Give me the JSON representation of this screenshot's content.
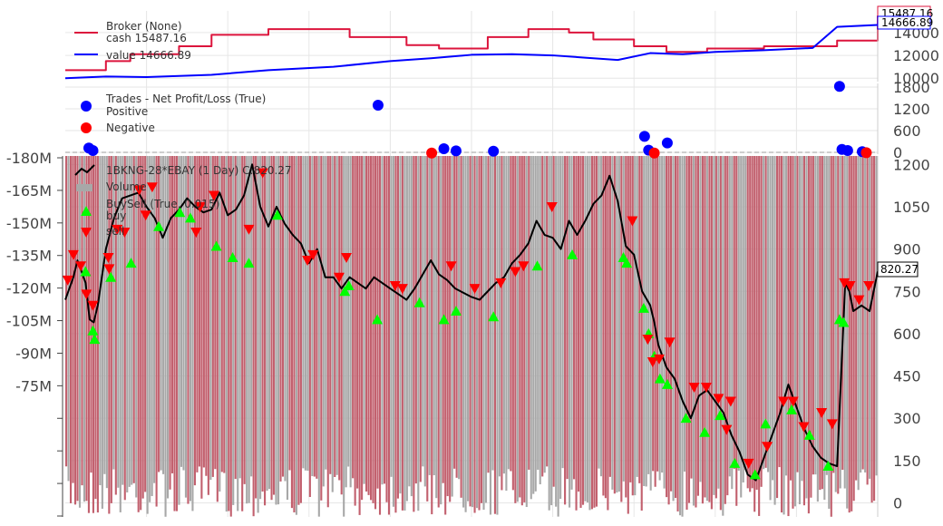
{
  "colors": {
    "cash": "#dc143c",
    "value": "#0000ff",
    "positive": "#0000ff",
    "negative": "#ff0000",
    "price": "#000000",
    "buy": "#00ff00",
    "sell": "#ff0000",
    "volume_up": "#c2606e",
    "volume_down": "#a8a8a8",
    "grid": "#e6e6e6",
    "zero_line": "#9e9e9e"
  },
  "chart_data": [
    {
      "type": "line",
      "panel": "broker",
      "legend": [
        "Broker (None)",
        "cash 15487.16",
        "value 14666.89"
      ],
      "y_ticks": [
        "10000",
        "12000",
        "14000"
      ],
      "ylim": [
        9700,
        15900
      ],
      "last_labels": {
        "cash": "15487.16",
        "value": "14666.89"
      },
      "series": [
        {
          "name": "cash",
          "x": [
            0,
            5,
            8,
            14,
            18,
            25,
            35,
            42,
            46,
            52,
            57,
            62,
            65,
            70,
            74,
            79,
            86,
            95,
            100
          ],
          "values": [
            10700,
            11500,
            12100,
            12800,
            13800,
            14300,
            13600,
            12900,
            12600,
            13600,
            14300,
            14000,
            13400,
            12800,
            12300,
            12600,
            12800,
            13300,
            15487.16
          ]
        },
        {
          "name": "value",
          "x": [
            0,
            5,
            10,
            18,
            25,
            33,
            40,
            45,
            50,
            55,
            60,
            64,
            68,
            72,
            76,
            80,
            86,
            92,
            95,
            100
          ],
          "values": [
            10000,
            10150,
            10100,
            10300,
            10700,
            11000,
            11500,
            11750,
            12050,
            12100,
            12000,
            11800,
            11600,
            12200,
            12100,
            12300,
            12450,
            12650,
            14500,
            14666.89
          ]
        }
      ]
    },
    {
      "type": "scatter",
      "panel": "trades",
      "legend": [
        "Trades - Net Profit/Loss (True)",
        "Positive",
        "Negative"
      ],
      "y_ticks": [
        "0",
        "600",
        "1200",
        "1800"
      ],
      "ylim": [
        -50,
        1900
      ],
      "positive": {
        "x": [
          2.9,
          3.4,
          38.5,
          46.6,
          48.1,
          52.7,
          71.3,
          71.8,
          74.1,
          95.3,
          95.6,
          96.3,
          98.1
        ],
        "values": [
          120,
          50,
          1300,
          100,
          40,
          30,
          440,
          60,
          260,
          1820,
          80,
          50,
          20
        ]
      },
      "negative": {
        "x": [
          45.1,
          72.5,
          98.6
        ],
        "values": [
          -20,
          -20,
          -10
        ]
      }
    },
    {
      "type": "line",
      "panel": "price",
      "legend": [
        "1BKNG-28*EBAY (1 Day) C:820.27",
        "Volume",
        "BuySell (True, 0.015)",
        "buy",
        "sell"
      ],
      "last_label": "820.27",
      "y_ticks_right": [
        "0",
        "150",
        "300",
        "450",
        "600",
        "750",
        "900",
        "1050",
        "1200"
      ],
      "y_ticks_left": [
        "-180M",
        "-165M",
        "-150M",
        "-135M",
        "-120M",
        "-105M",
        "-90M",
        "-75M",
        "",
        "",
        "",
        ""
      ],
      "ylim": [
        -50,
        1230
      ],
      "price": {
        "x": [
          0,
          1,
          1.5,
          2,
          2.5,
          3,
          3.5,
          4,
          5,
          6,
          7,
          9,
          10,
          11,
          12,
          13,
          14,
          15,
          16,
          17,
          18,
          19,
          20,
          21,
          22,
          23,
          24,
          25,
          26,
          27,
          28,
          29,
          30,
          31,
          32,
          33,
          34,
          35,
          37,
          38,
          39,
          40,
          41,
          42,
          43,
          45,
          46,
          47,
          48,
          50,
          51,
          52,
          53,
          54,
          55,
          56,
          57,
          58,
          59,
          60,
          61,
          62,
          63,
          64,
          65,
          66,
          67,
          68,
          69,
          70,
          71,
          72,
          72.5,
          73,
          74,
          75,
          76,
          77,
          78,
          79,
          80,
          81,
          82,
          83,
          84,
          85,
          86,
          87,
          88,
          89,
          90,
          91,
          92,
          93,
          94,
          95,
          96,
          96.5,
          97,
          98,
          99,
          100
        ],
        "values": [
          720,
          800,
          860,
          820,
          780,
          650,
          640,
          700,
          900,
          1010,
          1080,
          1100,
          1050,
          1010,
          940,
          1010,
          1040,
          1080,
          1050,
          1030,
          1040,
          1100,
          1020,
          1040,
          1090,
          1200,
          1050,
          980,
          1050,
          990,
          950,
          920,
          850,
          900,
          800,
          800,
          760,
          800,
          760,
          800,
          780,
          760,
          740,
          720,
          760,
          860,
          810,
          790,
          760,
          730,
          720,
          750,
          780,
          800,
          850,
          880,
          920,
          1000,
          950,
          940,
          900,
          1000,
          950,
          1000,
          1060,
          1090,
          1160,
          1070,
          910,
          880,
          750,
          700,
          640,
          560,
          480,
          440,
          360,
          300,
          380,
          400,
          360,
          320,
          240,
          180,
          100,
          80,
          160,
          240,
          320,
          420,
          340,
          260,
          200,
          160,
          140,
          130,
          780,
          750,
          680,
          700,
          680,
          820.27
        ]
      },
      "buy": {
        "x": [
          2.5,
          3.4,
          3.6,
          5.6,
          8.1,
          11.5,
          14.1,
          15.4,
          18.6,
          20.6,
          22.6,
          26.1,
          34.4,
          34.9,
          38.4,
          43.6,
          46.6,
          48.1,
          52.7,
          58.1,
          62.4,
          68.7,
          69.1,
          71.2,
          71.8,
          72.5,
          73.2,
          74.1,
          76.4,
          78.7,
          80.6,
          82.4,
          84.9,
          86.2,
          89.4,
          91.6,
          93.9,
          95.3,
          95.8
        ],
        "values": [
          820,
          610,
          580,
          800,
          850,
          980,
          1030,
          1010,
          910,
          870,
          850,
          1020,
          750,
          770,
          650,
          710,
          650,
          680,
          660,
          840,
          880,
          870,
          850,
          690,
          600,
          520,
          440,
          420,
          300,
          250,
          310,
          140,
          100,
          280,
          330,
          240,
          130,
          650,
          640
        ]
      },
      "sell": {
        "x": [
          0.3,
          1,
          1.9,
          2.6,
          3.4,
          5.3,
          5.4,
          6.4,
          7.3,
          9.1,
          9.9,
          10.7,
          16.1,
          16.6,
          18.3,
          22.6,
          24.3,
          29.8,
          30.5,
          33.7,
          34.6,
          40.6,
          41.5,
          47.5,
          50.4,
          53.6,
          55.4,
          56.4,
          59.9,
          69.8,
          71.7,
          72.3,
          73.1,
          74.4,
          77.4,
          78.9,
          80.4,
          81.4,
          81.9,
          84.1,
          86.4,
          88.4,
          89.6,
          90.9,
          93.1,
          94.4,
          95.9,
          96.6,
          97.7,
          98.9
        ],
        "values": [
          790,
          880,
          840,
          740,
          700,
          870,
          830,
          970,
          960,
          1110,
          1020,
          1120,
          960,
          1050,
          1090,
          970,
          1170,
          860,
          880,
          800,
          870,
          770,
          760,
          840,
          760,
          780,
          820,
          840,
          1050,
          1000,
          580,
          500,
          510,
          570,
          410,
          410,
          370,
          260,
          360,
          140,
          200,
          360,
          360,
          270,
          320,
          280,
          780,
          770,
          720,
          770
        ]
      },
      "volume": {
        "ylim": [
          -45,
          5
        ]
      }
    }
  ]
}
